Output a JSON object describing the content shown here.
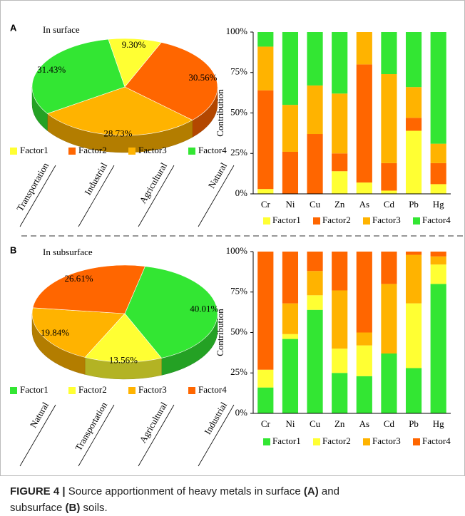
{
  "chart_data": [
    {
      "type": "pie",
      "panel": "A",
      "title": "In surface",
      "categories": [
        "Factor1",
        "Factor2",
        "Factor3",
        "Factor4"
      ],
      "values": [
        9.3,
        30.56,
        28.73,
        31.43
      ],
      "value_labels": [
        "9.30%",
        "30.56%",
        "28.73%",
        "31.43%"
      ],
      "colors": [
        "#ffff33",
        "#ff6600",
        "#ffb300",
        "#33e633"
      ],
      "source_labels": [
        "Transportation",
        "Industrial",
        "Agricultural",
        "Natural"
      ]
    },
    {
      "type": "bar",
      "stacked": true,
      "categories": [
        "Cr",
        "Ni",
        "Cu",
        "Zn",
        "As",
        "Cd",
        "Pb",
        "Hg"
      ],
      "ylabel": "Contribution",
      "ylim": [
        0,
        100
      ],
      "yticks": [
        {
          "value": 0,
          "label": "0%"
        },
        {
          "value": 25,
          "label": "25%"
        },
        {
          "value": 50,
          "label": "50%"
        },
        {
          "value": 75,
          "label": "75%"
        },
        {
          "value": 100,
          "label": "100%"
        }
      ],
      "series": [
        {
          "name": "Factor1",
          "color": "#ffff33",
          "values": [
            3,
            0,
            0,
            14,
            7,
            2,
            39,
            6
          ]
        },
        {
          "name": "Factor2",
          "color": "#ff6600",
          "values": [
            61,
            26,
            37,
            11,
            73,
            17,
            8,
            13
          ]
        },
        {
          "name": "Factor3",
          "color": "#ffb300",
          "values": [
            27,
            29,
            30,
            37,
            20,
            55,
            19,
            12
          ]
        },
        {
          "name": "Factor4",
          "color": "#33e633",
          "values": [
            9,
            45,
            33,
            38,
            0,
            26,
            34,
            69
          ]
        }
      ]
    },
    {
      "type": "pie",
      "panel": "B",
      "title": "In subsurface",
      "categories": [
        "Factor1",
        "Factor2",
        "Factor3",
        "Factor4"
      ],
      "values": [
        40.01,
        13.56,
        19.84,
        26.61
      ],
      "value_labels": [
        "40.01%",
        "13.56%",
        "19.84%",
        "26.61%"
      ],
      "colors": [
        "#33e633",
        "#ffff33",
        "#ffb300",
        "#ff6600"
      ],
      "source_labels": [
        "Natural",
        "Transportation",
        "Agricultural",
        "Industrial"
      ]
    },
    {
      "type": "bar",
      "stacked": true,
      "categories": [
        "Cr",
        "Ni",
        "Cu",
        "Zn",
        "As",
        "Cd",
        "Pb",
        "Hg"
      ],
      "ylabel": "Contribution",
      "ylim": [
        0,
        100
      ],
      "yticks": [
        {
          "value": 0,
          "label": "0%"
        },
        {
          "value": 25,
          "label": "25%"
        },
        {
          "value": 50,
          "label": "50%"
        },
        {
          "value": 75,
          "label": "75%"
        },
        {
          "value": 100,
          "label": "100%"
        }
      ],
      "series": [
        {
          "name": "Factor1",
          "color": "#33e633",
          "values": [
            16,
            46,
            64,
            25,
            23,
            37,
            28,
            80
          ]
        },
        {
          "name": "Factor2",
          "color": "#ffff33",
          "values": [
            11,
            3,
            9,
            15,
            19,
            0,
            40,
            12
          ]
        },
        {
          "name": "Factor3",
          "color": "#ffb300",
          "values": [
            0,
            19,
            15,
            36,
            8,
            43,
            30,
            5
          ]
        },
        {
          "name": "Factor4",
          "color": "#ff6600",
          "values": [
            73,
            32,
            12,
            24,
            50,
            20,
            2,
            3
          ]
        }
      ]
    }
  ],
  "caption": {
    "lines": [
      [
        {
          "text": "FIGURE 4 |",
          "bold": true
        },
        {
          "text": " Source apportionment of heavy metals in surface ",
          "bold": false
        },
        {
          "text": "(A)",
          "bold": true
        },
        {
          "text": " and",
          "bold": false
        }
      ],
      [
        {
          "text": "subsurface ",
          "bold": false
        },
        {
          "text": "(B)",
          "bold": true
        },
        {
          "text": " soils.",
          "bold": false
        }
      ]
    ]
  }
}
